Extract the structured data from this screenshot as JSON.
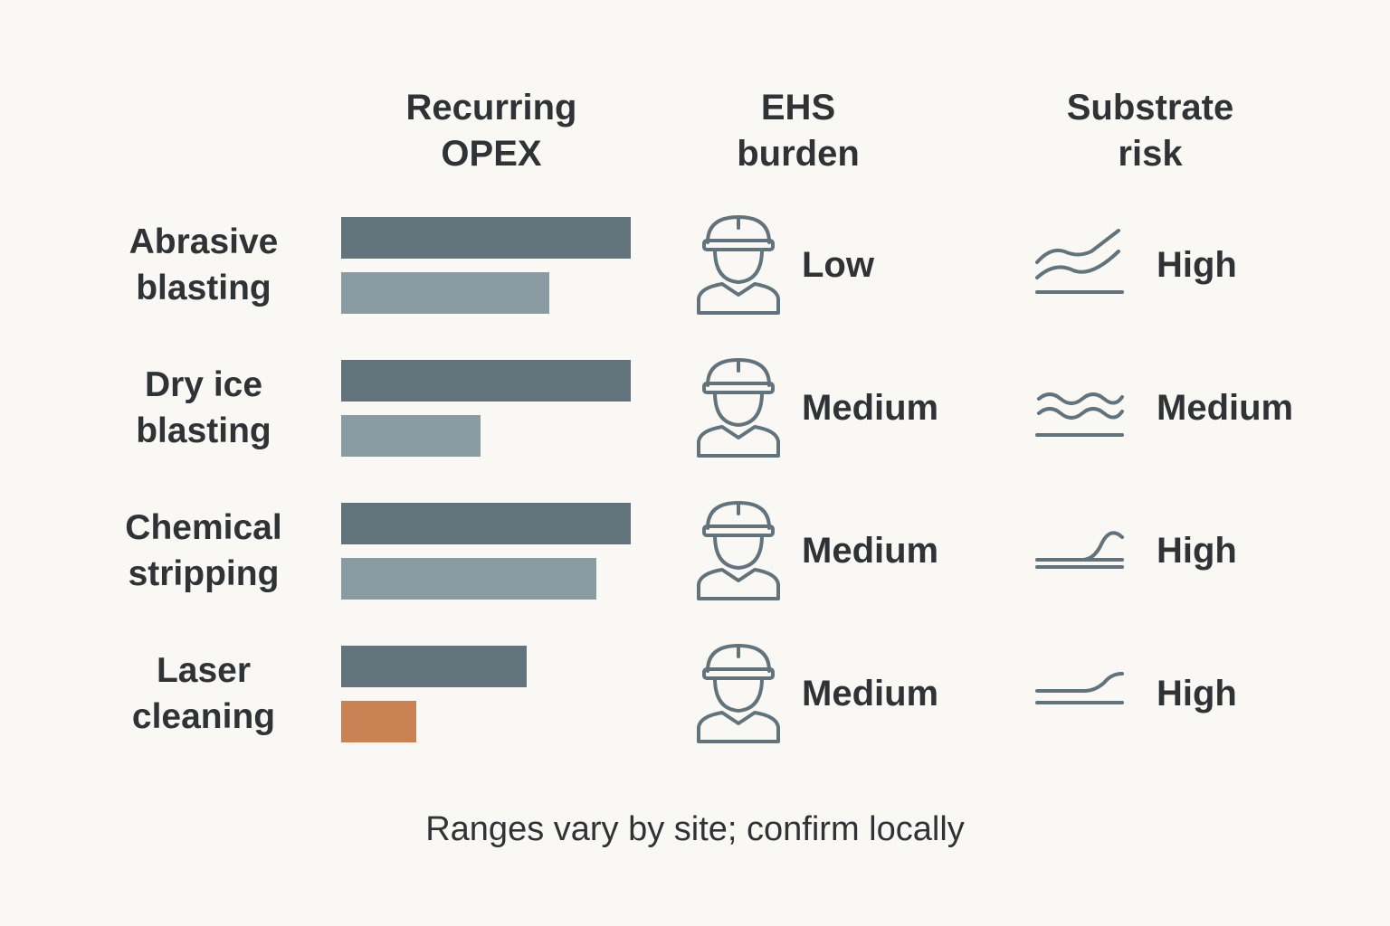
{
  "chart_data": {
    "type": "bar-table",
    "headers": [
      "Recurring OPEX",
      "EHS burden",
      "Substrate risk"
    ],
    "xlim": [
      0,
      100
    ],
    "rows": [
      {
        "label": "Abrasive blasting",
        "opex": [
          100,
          72
        ],
        "colors": [
          "#62737c",
          "#8a9ba1"
        ],
        "ehs": "Low",
        "risk": "High"
      },
      {
        "label": "Dry ice blasting",
        "opex": [
          100,
          48
        ],
        "colors": [
          "#62737c",
          "#8a9ba1"
        ],
        "ehs": "Medium",
        "risk": "Medium"
      },
      {
        "label": "Chemical stripping",
        "opex": [
          100,
          88
        ],
        "colors": [
          "#62737c",
          "#8a9ba1"
        ],
        "ehs": "Medium",
        "risk": "High"
      },
      {
        "label": "Laser cleaning",
        "opex": [
          64,
          26
        ],
        "colors": [
          "#62737c",
          "#c98254"
        ],
        "ehs": "Medium",
        "risk": "High"
      }
    ],
    "footnote": "Ranges vary by site; confirm locally"
  }
}
